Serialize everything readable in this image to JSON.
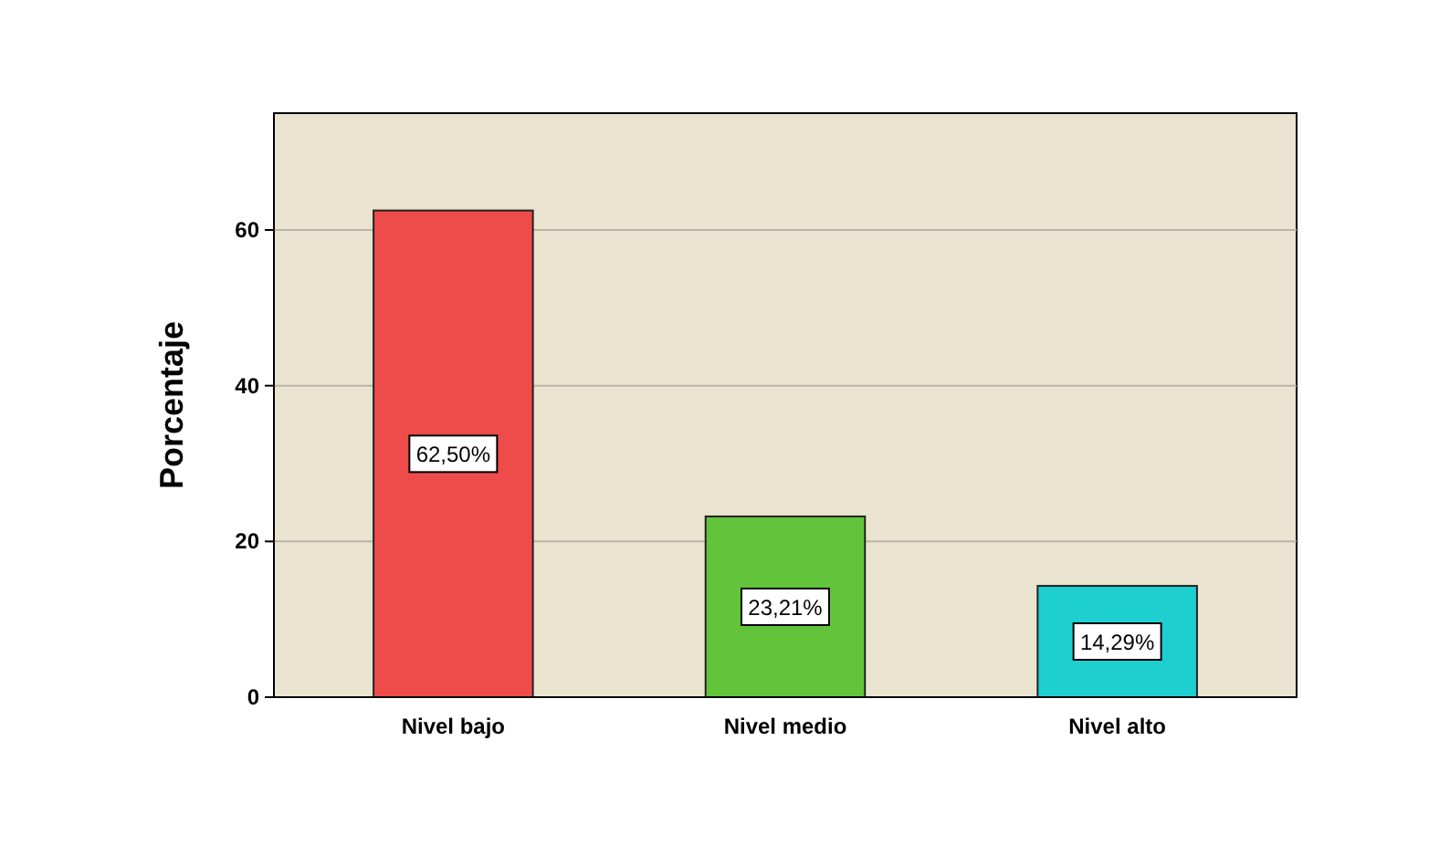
{
  "chart_data": {
    "type": "bar",
    "ylabel": "Porcentaje",
    "categories": [
      "Nivel bajo",
      "Nivel medio",
      "Nivel alto"
    ],
    "values": [
      62.5,
      23.21,
      14.29
    ],
    "colors": [
      "#ee4b4b",
      "#62c43a",
      "#1ecfd0"
    ],
    "value_labels": [
      "62,50%",
      "23,21%",
      "14,29%"
    ],
    "ylim": [
      0,
      75
    ],
    "yticks": [
      0,
      20,
      40,
      60
    ],
    "grid": "y"
  }
}
